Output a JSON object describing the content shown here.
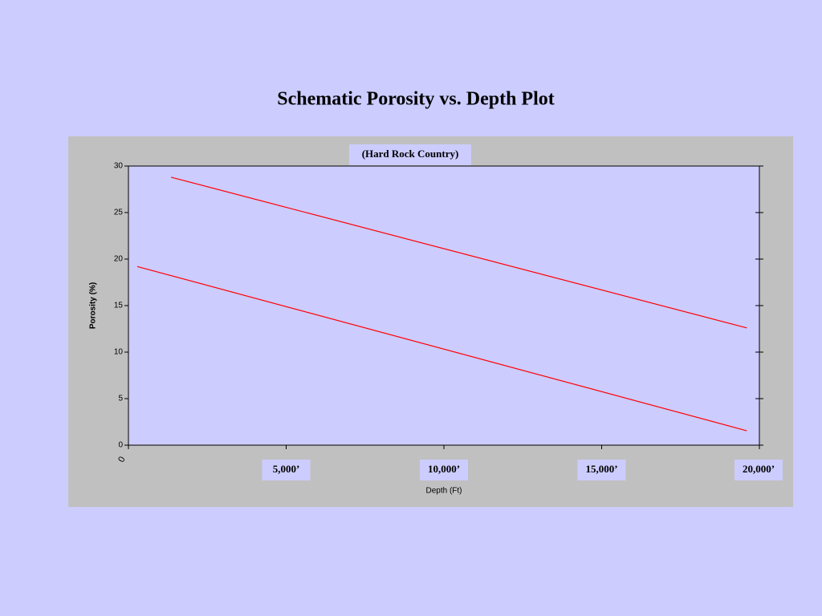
{
  "chart_data": {
    "type": "line",
    "title": "Schematic Porosity vs. Depth Plot",
    "subtitle": "(Hard Rock Country)",
    "x_label": "Depth (Ft)",
    "y_label": "Porosity (%)",
    "series": [
      {
        "color": "#ff0000",
        "x": [
          1350,
          19600
        ],
        "values": [
          28.8,
          12.6
        ]
      },
      {
        "color": "#ff0000",
        "x": [
          280,
          19600
        ],
        "values": [
          19.2,
          1.55
        ]
      }
    ],
    "xlim": [
      0,
      20000
    ],
    "xticks": [
      0,
      {
        "value": 5000,
        "label": "5,000’"
      },
      {
        "value": 10000,
        "label": "10,000’"
      },
      {
        "value": 15000,
        "label": "15,000’"
      },
      {
        "value": 20000,
        "label": "20,000’"
      }
    ],
    "ylim": [
      0,
      30
    ],
    "yticks": [
      0,
      5,
      10,
      15,
      20,
      25,
      30
    ],
    "grid": false
  }
}
